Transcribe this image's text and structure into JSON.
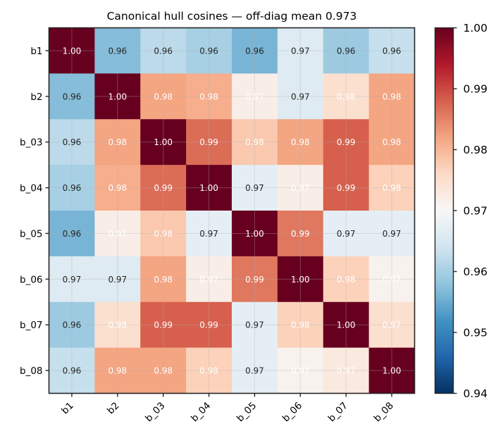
{
  "chart_data": {
    "type": "heatmap",
    "title": "Canonical hull cosines — off-diag mean 0.973",
    "xlabel": "",
    "ylabel": "",
    "x_categories": [
      "b1",
      "b2",
      "b_03",
      "b_04",
      "b_05",
      "b_06",
      "b_07",
      "b_08"
    ],
    "y_categories": [
      "b1",
      "b2",
      "b_03",
      "b_04",
      "b_05",
      "b_06",
      "b_07",
      "b_08"
    ],
    "values": [
      [
        1.0,
        0.957,
        0.962,
        0.96,
        0.956,
        0.966,
        0.959,
        0.963
      ],
      [
        0.957,
        1.0,
        0.982,
        0.981,
        0.972,
        0.966,
        0.975,
        0.982
      ],
      [
        0.962,
        0.982,
        1.0,
        0.987,
        0.978,
        0.982,
        0.988,
        0.982
      ],
      [
        0.96,
        0.981,
        0.987,
        1.0,
        0.967,
        0.972,
        0.988,
        0.977
      ],
      [
        0.956,
        0.972,
        0.978,
        0.967,
        1.0,
        0.986,
        0.967,
        0.967
      ],
      [
        0.966,
        0.966,
        0.982,
        0.972,
        0.986,
        1.0,
        0.977,
        0.971
      ],
      [
        0.959,
        0.975,
        0.988,
        0.988,
        0.967,
        0.977,
        1.0,
        0.975
      ],
      [
        0.963,
        0.982,
        0.982,
        0.977,
        0.967,
        0.971,
        0.973,
        1.0
      ]
    ],
    "cell_labels": [
      [
        "1.00",
        "0.96",
        "0.96",
        "0.96",
        "0.96",
        "0.97",
        "0.96",
        "0.96"
      ],
      [
        "0.96",
        "1.00",
        "0.98",
        "0.98",
        "0.97",
        "0.97",
        "0.98",
        "0.98"
      ],
      [
        "0.96",
        "0.98",
        "1.00",
        "0.99",
        "0.98",
        "0.98",
        "0.99",
        "0.98"
      ],
      [
        "0.96",
        "0.98",
        "0.99",
        "1.00",
        "0.97",
        "0.97",
        "0.99",
        "0.98"
      ],
      [
        "0.96",
        "0.97",
        "0.98",
        "0.97",
        "1.00",
        "0.99",
        "0.97",
        "0.97"
      ],
      [
        "0.97",
        "0.97",
        "0.98",
        "0.97",
        "0.99",
        "1.00",
        "0.98",
        "0.97"
      ],
      [
        "0.96",
        "0.98",
        "0.99",
        "0.99",
        "0.97",
        "0.98",
        "1.00",
        "0.97"
      ],
      [
        "0.96",
        "0.98",
        "0.98",
        "0.98",
        "0.97",
        "0.97",
        "0.97",
        "1.00"
      ]
    ],
    "colormap": "RdBu_r",
    "vmin": 0.94,
    "vmax": 1.0,
    "colorbar": {
      "ticks": [
        "1.00",
        "0.99",
        "0.98",
        "0.97",
        "0.96",
        "0.95",
        "0.94"
      ],
      "tick_values": [
        1.0,
        0.99,
        0.98,
        0.97,
        0.96,
        0.95,
        0.94
      ],
      "placement": "right"
    },
    "grid": true,
    "x_tick_rotation_deg": 45,
    "text_colors": {
      "dark": "#262626",
      "light": "#ffffff"
    }
  }
}
